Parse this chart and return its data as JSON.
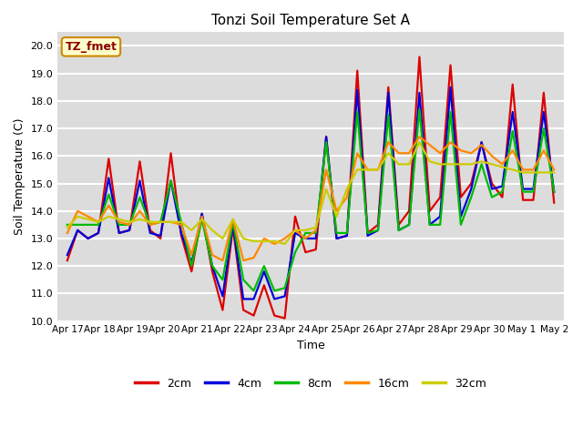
{
  "title": "Tonzi Soil Temperature Set A",
  "xlabel": "Time",
  "ylabel": "Soil Temperature (C)",
  "annotation": "TZ_fmet",
  "ylim": [
    10.0,
    20.5
  ],
  "yticks": [
    10.0,
    11.0,
    12.0,
    13.0,
    14.0,
    15.0,
    16.0,
    17.0,
    18.0,
    19.0,
    20.0
  ],
  "bg_color": "#dcdcdc",
  "legend_labels": [
    "2cm",
    "4cm",
    "8cm",
    "16cm",
    "32cm"
  ],
  "legend_colors": [
    "#dd0000",
    "#0000dd",
    "#00bb00",
    "#ff8800",
    "#cccc00"
  ],
  "x_labels": [
    "Apr 17",
    "Apr 18",
    "Apr 19",
    "Apr 20",
    "Apr 21",
    "Apr 22",
    "Apr 23",
    "Apr 24",
    "Apr 25",
    "Apr 26",
    "Apr 27",
    "Apr 28",
    "Apr 29",
    "Apr 30",
    "May 1",
    "May 2"
  ],
  "n_days": 16,
  "pts_per_day": 3,
  "series": {
    "2cm": [
      12.2,
      13.3,
      13.0,
      13.2,
      15.9,
      13.2,
      13.3,
      15.8,
      13.3,
      13.0,
      16.1,
      13.1,
      11.8,
      13.9,
      11.8,
      10.4,
      13.4,
      10.4,
      10.2,
      11.3,
      10.2,
      10.1,
      13.8,
      12.5,
      12.6,
      16.7,
      13.0,
      13.1,
      19.1,
      13.2,
      13.5,
      18.5,
      13.5,
      14.0,
      19.6,
      14.0,
      14.5,
      19.3,
      14.5,
      15.0,
      16.5,
      15.0,
      14.5,
      18.6,
      14.4,
      14.4,
      18.3,
      14.3
    ],
    "4cm": [
      12.4,
      13.3,
      13.0,
      13.2,
      15.2,
      13.2,
      13.3,
      15.1,
      13.2,
      13.1,
      15.1,
      13.2,
      12.1,
      13.9,
      12.0,
      10.9,
      13.5,
      10.8,
      10.8,
      11.8,
      10.8,
      10.9,
      13.2,
      13.0,
      13.0,
      16.7,
      13.0,
      13.1,
      18.4,
      13.1,
      13.3,
      18.3,
      13.3,
      13.5,
      18.3,
      13.5,
      13.8,
      18.5,
      13.8,
      14.8,
      16.5,
      14.8,
      14.9,
      17.6,
      14.8,
      14.8,
      17.6,
      14.7
    ],
    "8cm": [
      13.5,
      13.5,
      13.5,
      13.5,
      14.6,
      13.5,
      13.5,
      14.5,
      13.5,
      13.6,
      15.1,
      13.6,
      12.0,
      13.7,
      12.0,
      11.5,
      13.6,
      11.5,
      11.1,
      12.0,
      11.1,
      11.2,
      12.5,
      13.2,
      13.2,
      16.5,
      13.2,
      13.2,
      17.6,
      13.2,
      13.3,
      17.5,
      13.3,
      13.5,
      17.7,
      13.5,
      13.5,
      17.6,
      13.5,
      14.5,
      15.7,
      14.5,
      14.7,
      16.9,
      14.7,
      14.7,
      17.0,
      14.7
    ],
    "16cm": [
      13.2,
      14.0,
      13.8,
      13.6,
      14.2,
      13.6,
      13.5,
      14.0,
      13.5,
      13.6,
      13.6,
      13.5,
      12.4,
      13.8,
      12.4,
      12.2,
      13.7,
      12.2,
      12.3,
      13.0,
      12.8,
      13.0,
      13.3,
      13.0,
      13.3,
      15.5,
      14.0,
      14.5,
      16.1,
      15.5,
      15.5,
      16.5,
      16.1,
      16.1,
      16.7,
      16.4,
      16.1,
      16.5,
      16.2,
      16.1,
      16.4,
      16.0,
      15.7,
      16.2,
      15.5,
      15.5,
      16.2,
      15.5
    ],
    "32cm": [
      13.4,
      13.8,
      13.7,
      13.6,
      13.8,
      13.7,
      13.6,
      13.7,
      13.6,
      13.6,
      13.6,
      13.6,
      13.3,
      13.7,
      13.3,
      13.0,
      13.7,
      13.0,
      12.9,
      12.9,
      12.9,
      12.8,
      13.3,
      13.3,
      13.4,
      14.8,
      13.8,
      14.8,
      15.5,
      15.5,
      15.5,
      16.1,
      15.7,
      15.7,
      16.5,
      15.8,
      15.7,
      15.7,
      15.7,
      15.7,
      15.8,
      15.7,
      15.6,
      15.5,
      15.4,
      15.4,
      15.4,
      15.4
    ]
  }
}
